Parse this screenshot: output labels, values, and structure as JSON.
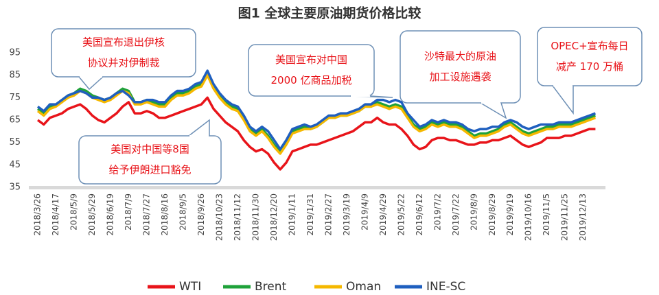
{
  "chart_data": {
    "type": "line",
    "title": "图1  全球主要原油期货价格比较",
    "categories": [
      "2018/3/26",
      null,
      null,
      "2018/4/17",
      null,
      null,
      "2018/5/9",
      null,
      null,
      "2018/5/29",
      null,
      null,
      "2018/6/19",
      null,
      null,
      "2018/7/9",
      null,
      null,
      "2018/7/27",
      null,
      null,
      "2018/8/16",
      null,
      null,
      "2018/9/5",
      null,
      null,
      "2018/9/26",
      null,
      null,
      "2018/10/23",
      null,
      null,
      "2018/11/12",
      null,
      null,
      "2018/11/30",
      null,
      null,
      "2018/12/20",
      null,
      null,
      "2019/1/11",
      null,
      null,
      "2019/1/31",
      null,
      null,
      "2019/2/27",
      null,
      null,
      "2019/3/19",
      null,
      null,
      "2019/4/9",
      null,
      null,
      "2019/4/29",
      null,
      null,
      "2019/5/22",
      null,
      null,
      "2019/6/12",
      null,
      null,
      "2019/7/2",
      null,
      null,
      "2019/7/22",
      null,
      null,
      "2019/8/9",
      null,
      null,
      "2019/8/29",
      null,
      null,
      "2019/9/19",
      null,
      null,
      "2019/10/16",
      null,
      null,
      "2019/11/5",
      null,
      null,
      "2019/11/25",
      null,
      null,
      "2019/12/13",
      null,
      null
    ],
    "series": [
      {
        "name": "WTI",
        "color": "#e8141a",
        "values": [
          65,
          63,
          66,
          67,
          68,
          70,
          71,
          72,
          70,
          67,
          65,
          64,
          66,
          68,
          71,
          73,
          68,
          68,
          69,
          68,
          66,
          66,
          67,
          68,
          69,
          70,
          71,
          72,
          75,
          70,
          67,
          64,
          62,
          60,
          56,
          53,
          51,
          52,
          50,
          46,
          43,
          46,
          51,
          52,
          53,
          54,
          54,
          55,
          56,
          57,
          58,
          59,
          60,
          62,
          64,
          64,
          66,
          64,
          63,
          63,
          61,
          58,
          54,
          52,
          53,
          56,
          57,
          57,
          56,
          56,
          55,
          54,
          54,
          55,
          55,
          56,
          56,
          57,
          58,
          56,
          54,
          53,
          54,
          55,
          57,
          57,
          57,
          58,
          58,
          59,
          60,
          61,
          61
        ]
      },
      {
        "name": "Brent",
        "color": "#1fa23a",
        "values": [
          70,
          68,
          71,
          72,
          74,
          76,
          77,
          79,
          78,
          76,
          75,
          74,
          75,
          77,
          79,
          78,
          73,
          73,
          74,
          73,
          72,
          72,
          75,
          77,
          77,
          78,
          80,
          81,
          85,
          80,
          76,
          73,
          71,
          70,
          66,
          61,
          59,
          61,
          58,
          54,
          51,
          55,
          60,
          61,
          62,
          61,
          62,
          64,
          66,
          66,
          67,
          67,
          68,
          69,
          71,
          71,
          73,
          72,
          71,
          72,
          71,
          67,
          63,
          61,
          62,
          64,
          63,
          64,
          63,
          63,
          62,
          60,
          58,
          59,
          59,
          60,
          61,
          63,
          64,
          62,
          60,
          59,
          60,
          61,
          62,
          62,
          63,
          63,
          63,
          64,
          65,
          66,
          67
        ]
      },
      {
        "name": "Oman",
        "color": "#f5b800",
        "values": [
          69,
          67,
          70,
          71,
          73,
          75,
          76,
          78,
          77,
          75,
          74,
          73,
          74,
          76,
          78,
          77,
          72,
          72,
          73,
          72,
          71,
          71,
          74,
          76,
          76,
          77,
          79,
          80,
          85,
          79,
          75,
          72,
          70,
          69,
          65,
          60,
          58,
          60,
          57,
          53,
          50,
          54,
          59,
          60,
          61,
          61,
          62,
          64,
          66,
          66,
          67,
          67,
          68,
          69,
          71,
          71,
          72,
          71,
          70,
          71,
          70,
          66,
          62,
          60,
          61,
          63,
          62,
          63,
          62,
          62,
          61,
          59,
          57,
          58,
          58,
          59,
          60,
          62,
          63,
          61,
          59,
          58,
          59,
          60,
          61,
          61,
          62,
          62,
          62,
          63,
          64,
          65,
          66
        ]
      },
      {
        "name": "INE-SC",
        "color": "#1f5fbf",
        "values": [
          71,
          69,
          72,
          72,
          74,
          76,
          77,
          78,
          77,
          75,
          75,
          74,
          75,
          77,
          78,
          76,
          73,
          73,
          74,
          74,
          73,
          73,
          76,
          78,
          78,
          79,
          81,
          82,
          87,
          81,
          77,
          74,
          72,
          71,
          67,
          62,
          60,
          62,
          60,
          56,
          52,
          56,
          61,
          62,
          63,
          62,
          63,
          65,
          67,
          67,
          68,
          68,
          69,
          70,
          72,
          72,
          74,
          74,
          73,
          74,
          73,
          68,
          65,
          62,
          63,
          65,
          64,
          65,
          64,
          64,
          63,
          61,
          60,
          61,
          61,
          62,
          62,
          64,
          65,
          64,
          62,
          61,
          62,
          63,
          63,
          63,
          64,
          64,
          64,
          65,
          66,
          67,
          68
        ]
      }
    ],
    "ylim": [
      35,
      95
    ],
    "yticks": [
      35,
      45,
      55,
      65,
      75,
      85,
      95
    ],
    "annotations": [
      [
        "美国宣布退出伊核",
        "协议并对伊制裁"
      ],
      [
        "美国对中国等8国",
        "给予伊朗进口豁免"
      ],
      [
        "美国宣布对中国",
        "2000 亿商品加税"
      ],
      [
        "沙特最大的原油",
        "加工设施遇袭"
      ],
      [
        "OPEC+宣布每日",
        "减产 170 万桶"
      ]
    ]
  }
}
